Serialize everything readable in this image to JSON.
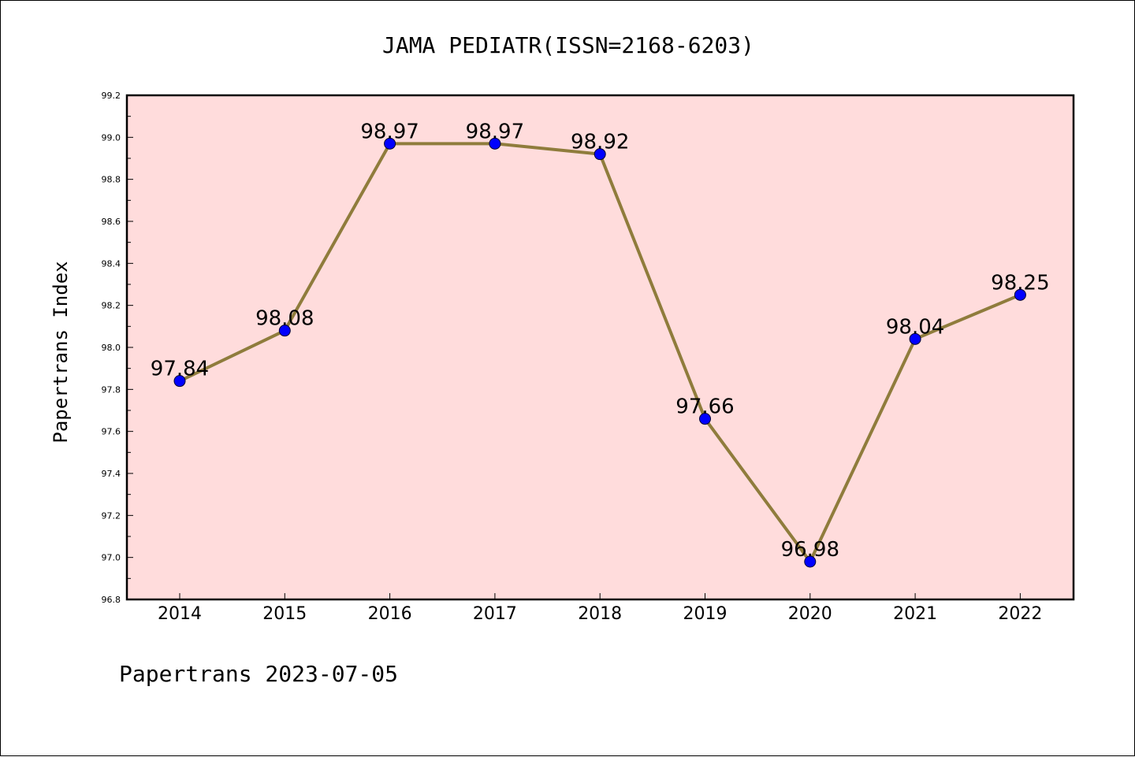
{
  "chart_data": {
    "type": "line",
    "title": "JAMA PEDIATR(ISSN=2168-6203)",
    "xlabel": "",
    "ylabel": "Papertrans Index",
    "categories": [
      "2014",
      "2015",
      "2016",
      "2017",
      "2018",
      "2019",
      "2020",
      "2021",
      "2022"
    ],
    "series": [
      {
        "values": [
          97.84,
          98.08,
          98.97,
          98.97,
          98.92,
          97.66,
          96.98,
          98.04,
          98.25
        ],
        "labels": [
          "97.84",
          "98.08",
          "98.97",
          "98.97",
          "98.92",
          "97.66",
          "96.98",
          "98.04",
          "98.25"
        ]
      }
    ],
    "ylim": [
      96.8,
      99.2
    ],
    "yticks": [
      "96.8",
      "97.0",
      "97.2",
      "97.4",
      "97.6",
      "97.8",
      "98.0",
      "98.2",
      "98.4",
      "98.6",
      "98.8",
      "99.0",
      "99.2"
    ],
    "grid": false,
    "colors": {
      "plot_background": "#ffdcdc",
      "line": "#8f7c3c",
      "marker": "#0000ff"
    }
  },
  "footer": "Papertrans 2023-07-05"
}
